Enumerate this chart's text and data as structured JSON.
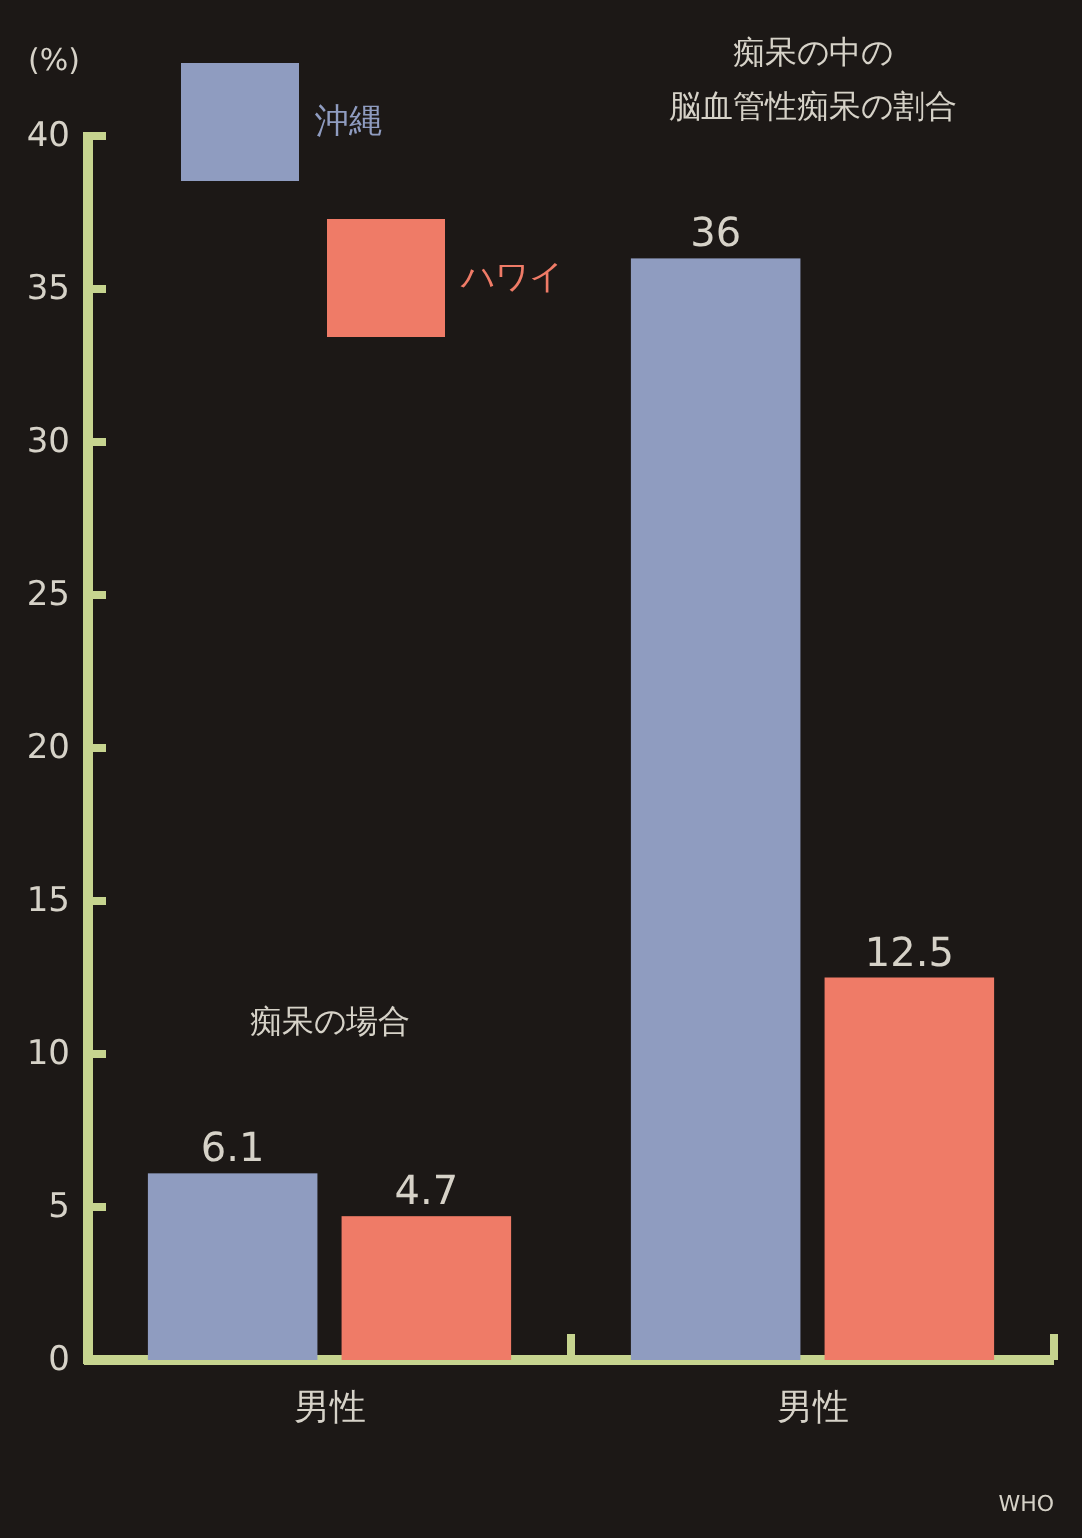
{
  "chart_data": {
    "type": "bar",
    "ylabel": "(%)",
    "categories": [
      "男性",
      "男性"
    ],
    "series": [
      {
        "name": "沖縄",
        "color": "#8f9cc0",
        "values": [
          6.1,
          36
        ]
      },
      {
        "name": "ハワイ",
        "color": "#ef7b67",
        "values": [
          4.7,
          12.5
        ]
      }
    ],
    "ylim": [
      0,
      40
    ],
    "yticks": [
      0,
      5,
      10,
      15,
      20,
      25,
      30,
      35,
      40
    ],
    "data_labels": true,
    "legend": "top left",
    "annotations": [
      "痴呆の場合",
      "痴呆の中の",
      "脳血管性痴呆の割合",
      "WHO"
    ]
  }
}
